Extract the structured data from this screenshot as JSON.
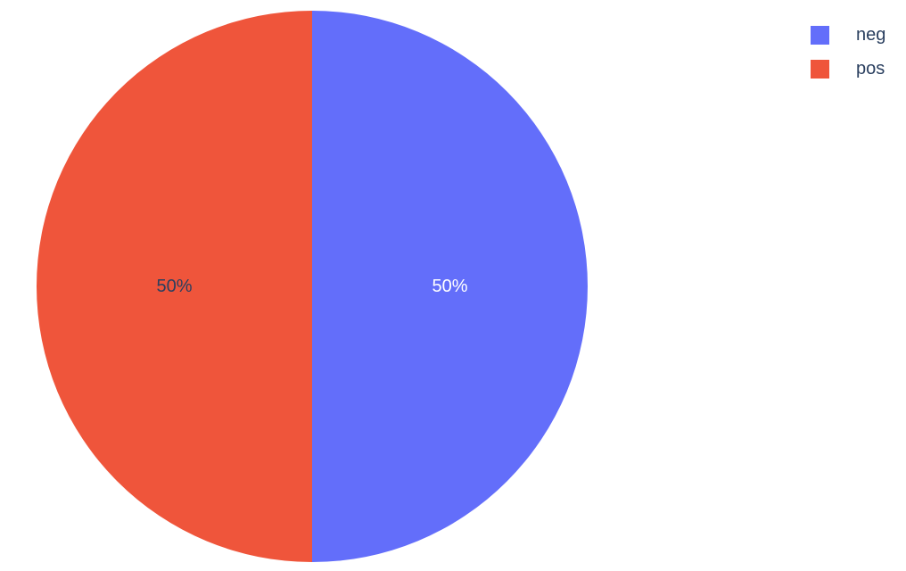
{
  "background_color": "#ffffff",
  "text_color": "#2a3f5f",
  "chart_data": {
    "type": "pie",
    "title": "",
    "labels": [
      "neg",
      "pos"
    ],
    "values": [
      50,
      50
    ],
    "colors": [
      "#636efa",
      "#ef553b"
    ],
    "slice_text": [
      "50%",
      "50%"
    ],
    "slice_text_colors": [
      "#ffffff",
      "#2a3f5f"
    ],
    "start_angle_deg": 0,
    "direction": "clockwise",
    "legend_position": "top-right",
    "grid": false
  },
  "legend": {
    "items": [
      {
        "label": "neg",
        "color": "#636efa"
      },
      {
        "label": "pos",
        "color": "#ef553b"
      }
    ]
  }
}
